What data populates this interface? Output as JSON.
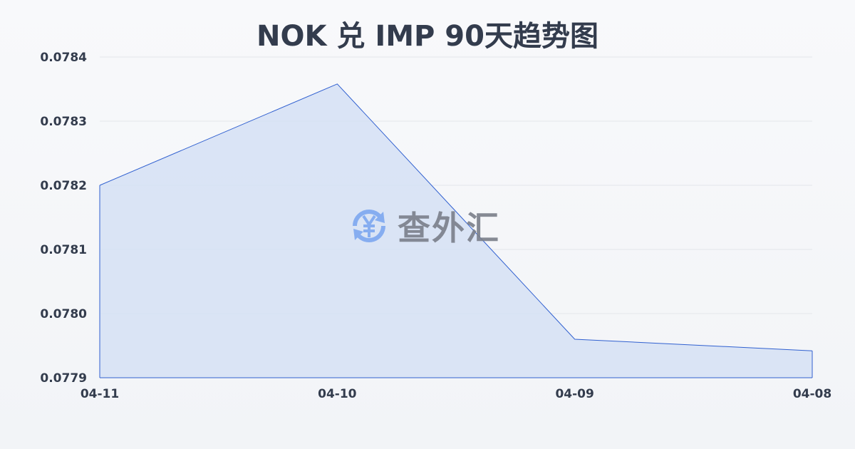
{
  "chart_data": {
    "type": "area",
    "title": "NOK 兑 IMP 90天趋势图",
    "categories": [
      "04-11",
      "04-10",
      "04-09",
      "04-08"
    ],
    "values": [
      0.0782,
      0.078358,
      0.07796,
      0.077942
    ],
    "ylim": [
      0.0779,
      0.0784
    ],
    "yticks": [
      "0.0784",
      "0.0783",
      "0.0782",
      "0.0781",
      "0.0780",
      "0.0779"
    ],
    "grid": true,
    "line_color": "#3060d0",
    "fill_color": "#d5e0f5"
  },
  "watermark": {
    "text": "查外汇",
    "icon": "yen-exchange-icon",
    "icon_color": "#7ea8f0"
  }
}
